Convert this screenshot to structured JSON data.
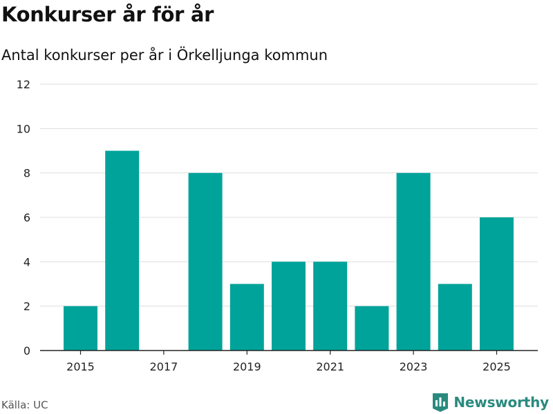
{
  "header": {
    "title": "Konkurser år för år",
    "subtitle": "Antal konkurser per år i Örkelljunga kommun"
  },
  "footer": {
    "source": "Källa: UC",
    "brand": "Newsworthy"
  },
  "colors": {
    "bar": "#00a39a",
    "grid": "#dddddd",
    "axis": "#222222",
    "brand": "#2a8a7e"
  },
  "chart_data": {
    "type": "bar",
    "categories": [
      2015,
      2016,
      2017,
      2018,
      2019,
      2020,
      2021,
      2022,
      2023,
      2024,
      2025
    ],
    "values": [
      2,
      9,
      0,
      8,
      3,
      4,
      4,
      2,
      8,
      3,
      6
    ],
    "x_tick_labels": [
      "2015",
      "2017",
      "2019",
      "2021",
      "2023",
      "2025"
    ],
    "y_ticks": [
      0,
      2,
      4,
      6,
      8,
      10,
      12
    ],
    "ylim": [
      0,
      12
    ],
    "grid": true,
    "legend": "none"
  }
}
